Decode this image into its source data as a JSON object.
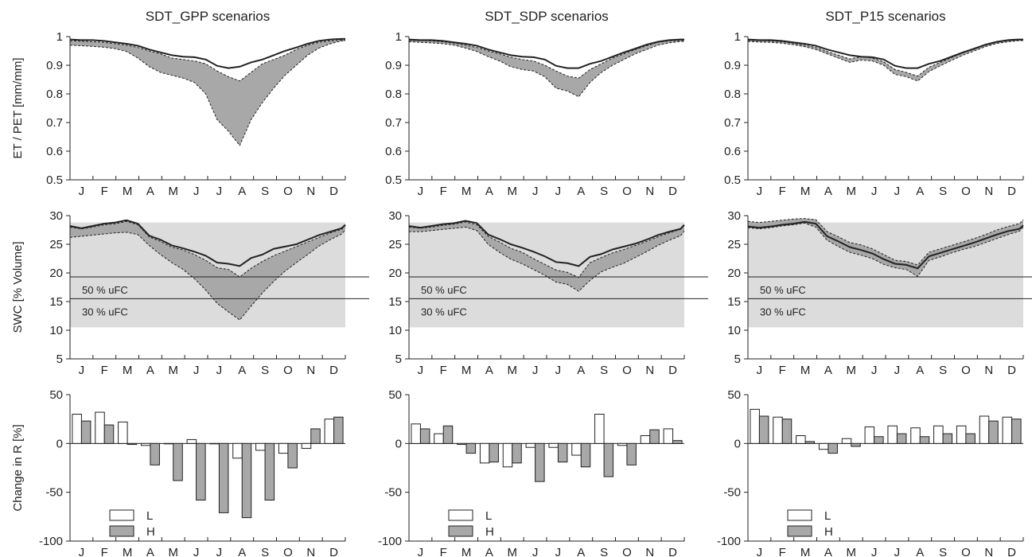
{
  "figure": {
    "months": [
      "J",
      "F",
      "M",
      "A",
      "M",
      "J",
      "J",
      "A",
      "S",
      "O",
      "N",
      "D"
    ],
    "titles": [
      "SDT_GPP scenarios",
      "SDT_SDP scenarios",
      "SDT_P15 scenarios"
    ],
    "ylabels": [
      "ET / PET [mm/mm]",
      "SWC [% Volume]",
      "Change in R [%]"
    ],
    "colors": {
      "band": "#a8a8a8",
      "swc_region": "#dcdcdc",
      "bar_H": "#a8a8a8",
      "bar_L": "#ffffff",
      "line": "#222222"
    }
  },
  "chart_data": [
    {
      "type": "area",
      "id": "et-gpp",
      "title": "SDT_GPP scenarios",
      "ylabel": "ET / PET [mm/mm]",
      "ylim": [
        0.5,
        1
      ],
      "yticks": [
        "0.5",
        "0.6",
        "0.7",
        "0.8",
        "0.9",
        "1"
      ],
      "xlim": [
        0,
        365
      ],
      "x": [
        0,
        15,
        30,
        45,
        60,
        75,
        90,
        105,
        120,
        135,
        150,
        165,
        180,
        195,
        210,
        225,
        240,
        255,
        270,
        285,
        300,
        315,
        330,
        345,
        360,
        365
      ],
      "series": [
        {
          "role": "reference",
          "values": [
            0.99,
            0.988,
            0.988,
            0.985,
            0.98,
            0.975,
            0.968,
            0.955,
            0.945,
            0.935,
            0.93,
            0.928,
            0.92,
            0.898,
            0.89,
            0.895,
            0.91,
            0.92,
            0.935,
            0.95,
            0.962,
            0.975,
            0.985,
            0.99,
            0.992,
            0.992
          ]
        },
        {
          "role": "upper",
          "values": [
            0.985,
            0.984,
            0.982,
            0.98,
            0.975,
            0.97,
            0.962,
            0.95,
            0.94,
            0.925,
            0.92,
            0.915,
            0.905,
            0.88,
            0.86,
            0.845,
            0.875,
            0.905,
            0.92,
            0.935,
            0.955,
            0.97,
            0.98,
            0.985,
            0.988,
            0.988
          ]
        },
        {
          "role": "lower",
          "values": [
            0.97,
            0.968,
            0.966,
            0.963,
            0.958,
            0.948,
            0.925,
            0.895,
            0.875,
            0.865,
            0.855,
            0.84,
            0.8,
            0.71,
            0.67,
            0.62,
            0.71,
            0.77,
            0.82,
            0.865,
            0.9,
            0.935,
            0.96,
            0.975,
            0.985,
            0.985
          ]
        }
      ]
    },
    {
      "type": "area",
      "id": "et-sdp",
      "title": "SDT_SDP scenarios",
      "ylabel": "",
      "ylim": [
        0.5,
        1
      ],
      "yticks": [
        "0.5",
        "0.6",
        "0.7",
        "0.8",
        "0.9",
        "1"
      ],
      "xlim": [
        0,
        365
      ],
      "x": [
        0,
        15,
        30,
        45,
        60,
        75,
        90,
        105,
        120,
        135,
        150,
        165,
        180,
        195,
        210,
        225,
        240,
        255,
        270,
        285,
        300,
        315,
        330,
        345,
        360,
        365
      ],
      "series": [
        {
          "role": "reference",
          "values": [
            0.99,
            0.988,
            0.988,
            0.985,
            0.98,
            0.975,
            0.968,
            0.955,
            0.945,
            0.935,
            0.93,
            0.928,
            0.92,
            0.898,
            0.89,
            0.89,
            0.905,
            0.915,
            0.93,
            0.945,
            0.958,
            0.972,
            0.982,
            0.988,
            0.99,
            0.99
          ]
        },
        {
          "role": "upper",
          "values": [
            0.987,
            0.986,
            0.985,
            0.982,
            0.977,
            0.97,
            0.962,
            0.95,
            0.94,
            0.928,
            0.92,
            0.915,
            0.9,
            0.88,
            0.862,
            0.855,
            0.885,
            0.905,
            0.925,
            0.94,
            0.955,
            0.968,
            0.98,
            0.985,
            0.987,
            0.987
          ]
        },
        {
          "role": "lower",
          "values": [
            0.982,
            0.98,
            0.978,
            0.975,
            0.97,
            0.96,
            0.948,
            0.93,
            0.915,
            0.895,
            0.885,
            0.88,
            0.86,
            0.82,
            0.81,
            0.79,
            0.84,
            0.875,
            0.9,
            0.92,
            0.94,
            0.955,
            0.97,
            0.978,
            0.983,
            0.983
          ]
        }
      ]
    },
    {
      "type": "area",
      "id": "et-p15",
      "title": "SDT_P15 scenarios",
      "ylabel": "",
      "ylim": [
        0.5,
        1
      ],
      "yticks": [
        "0.5",
        "0.6",
        "0.7",
        "0.8",
        "0.9",
        "1"
      ],
      "xlim": [
        0,
        365
      ],
      "x": [
        0,
        15,
        30,
        45,
        60,
        75,
        90,
        105,
        120,
        135,
        150,
        165,
        180,
        195,
        210,
        225,
        240,
        255,
        270,
        285,
        300,
        315,
        330,
        345,
        360,
        365
      ],
      "series": [
        {
          "role": "reference",
          "values": [
            0.99,
            0.988,
            0.988,
            0.985,
            0.98,
            0.975,
            0.968,
            0.955,
            0.945,
            0.935,
            0.93,
            0.928,
            0.92,
            0.898,
            0.89,
            0.89,
            0.905,
            0.915,
            0.93,
            0.945,
            0.958,
            0.972,
            0.982,
            0.988,
            0.99,
            0.99
          ]
        },
        {
          "role": "upper",
          "values": [
            0.987,
            0.986,
            0.985,
            0.982,
            0.977,
            0.97,
            0.962,
            0.948,
            0.935,
            0.922,
            0.93,
            0.925,
            0.912,
            0.885,
            0.875,
            0.862,
            0.893,
            0.91,
            0.927,
            0.943,
            0.957,
            0.97,
            0.98,
            0.986,
            0.988,
            0.988
          ]
        },
        {
          "role": "lower",
          "values": [
            0.983,
            0.981,
            0.98,
            0.977,
            0.972,
            0.965,
            0.955,
            0.94,
            0.925,
            0.91,
            0.918,
            0.915,
            0.9,
            0.868,
            0.86,
            0.845,
            0.878,
            0.898,
            0.917,
            0.935,
            0.95,
            0.965,
            0.976,
            0.982,
            0.986,
            0.986
          ]
        }
      ]
    },
    {
      "type": "area",
      "id": "swc-gpp",
      "ylabel": "SWC [% Volume]",
      "ylim": [
        5,
        30
      ],
      "yticks": [
        "5",
        "10",
        "15",
        "20",
        "25",
        "30"
      ],
      "xlim": [
        0,
        365
      ],
      "region": [
        10.5,
        28.8
      ],
      "hlines": [
        {
          "y": 19.3,
          "label": "50 % uFC"
        },
        {
          "y": 15.5,
          "label": "30 % uFC"
        }
      ],
      "x": [
        0,
        15,
        30,
        45,
        60,
        75,
        90,
        105,
        120,
        135,
        150,
        165,
        180,
        195,
        210,
        225,
        240,
        255,
        270,
        285,
        300,
        315,
        330,
        345,
        360,
        365
      ],
      "series": [
        {
          "role": "reference",
          "values": [
            28.2,
            27.8,
            28.2,
            28.6,
            28.8,
            29.2,
            28.6,
            26.5,
            25.8,
            24.8,
            24.3,
            23.7,
            23.0,
            21.8,
            21.6,
            21.2,
            22.6,
            23.2,
            24.2,
            24.6,
            25.0,
            25.8,
            26.6,
            27.2,
            27.8,
            28.4
          ]
        },
        {
          "role": "upper",
          "values": [
            28.0,
            27.7,
            28.0,
            28.4,
            28.6,
            29.0,
            28.4,
            26.3,
            25.5,
            24.5,
            24.0,
            23.2,
            22.2,
            20.9,
            20.6,
            19.3,
            20.8,
            22.0,
            23.0,
            23.8,
            24.6,
            25.4,
            26.2,
            27.0,
            27.6,
            28.3
          ]
        },
        {
          "role": "lower",
          "values": [
            26.2,
            26.4,
            26.6,
            26.8,
            27.0,
            27.1,
            26.7,
            24.8,
            23.2,
            21.8,
            20.6,
            19.0,
            17.0,
            14.7,
            13.2,
            11.8,
            14.2,
            16.5,
            18.5,
            20.3,
            21.8,
            23.2,
            24.7,
            25.8,
            26.8,
            27.5
          ]
        }
      ]
    },
    {
      "type": "area",
      "id": "swc-sdp",
      "ylabel": "",
      "ylim": [
        5,
        30
      ],
      "yticks": [
        "5",
        "10",
        "15",
        "20",
        "25",
        "30"
      ],
      "xlim": [
        0,
        365
      ],
      "region": [
        10.5,
        28.8
      ],
      "hlines": [
        {
          "y": 19.3,
          "label": "50 % uFC"
        },
        {
          "y": 15.5,
          "label": "30 % uFC"
        }
      ],
      "x": [
        0,
        15,
        30,
        45,
        60,
        75,
        90,
        105,
        120,
        135,
        150,
        165,
        180,
        195,
        210,
        225,
        240,
        255,
        270,
        285,
        300,
        315,
        330,
        345,
        360,
        365
      ],
      "series": [
        {
          "role": "reference",
          "values": [
            28.2,
            27.9,
            28.2,
            28.5,
            28.7,
            29.1,
            28.7,
            26.7,
            25.9,
            25.0,
            24.4,
            23.7,
            22.9,
            21.9,
            21.7,
            21.2,
            22.8,
            23.3,
            24.1,
            24.6,
            25.1,
            25.8,
            26.6,
            27.2,
            27.7,
            28.4
          ]
        },
        {
          "role": "upper",
          "values": [
            28.0,
            27.8,
            28.0,
            28.3,
            28.5,
            28.9,
            28.4,
            26.4,
            25.4,
            24.3,
            23.6,
            22.5,
            21.5,
            20.5,
            20.1,
            19.2,
            21.8,
            22.7,
            23.5,
            24.1,
            24.8,
            25.5,
            26.3,
            27.0,
            27.6,
            28.3
          ]
        },
        {
          "role": "lower",
          "values": [
            27.2,
            27.2,
            27.4,
            27.6,
            27.8,
            28.0,
            27.4,
            25.0,
            23.6,
            22.4,
            21.6,
            20.6,
            19.6,
            18.4,
            18.0,
            16.8,
            18.7,
            20.2,
            21.0,
            21.7,
            22.7,
            23.7,
            24.8,
            25.7,
            26.5,
            27.3
          ]
        }
      ]
    },
    {
      "type": "area",
      "id": "swc-p15",
      "ylabel": "",
      "ylim": [
        5,
        30
      ],
      "yticks": [
        "5",
        "10",
        "15",
        "20",
        "25",
        "30"
      ],
      "xlim": [
        0,
        365
      ],
      "region": [
        10.5,
        28.8
      ],
      "hlines": [
        {
          "y": 19.3,
          "label": "50 % uFC"
        },
        {
          "y": 15.5,
          "label": "30 % uFC"
        }
      ],
      "x": [
        0,
        15,
        30,
        45,
        60,
        75,
        90,
        105,
        120,
        135,
        150,
        165,
        180,
        195,
        210,
        225,
        240,
        255,
        270,
        285,
        300,
        315,
        330,
        345,
        360,
        365
      ],
      "series": [
        {
          "role": "reference",
          "values": [
            28.1,
            27.9,
            28.1,
            28.4,
            28.6,
            28.9,
            28.6,
            26.4,
            25.5,
            24.5,
            24.0,
            23.4,
            22.4,
            21.6,
            21.4,
            20.8,
            22.9,
            23.5,
            24.1,
            24.7,
            25.3,
            26.0,
            26.7,
            27.3,
            27.7,
            28.3
          ]
        },
        {
          "role": "upper",
          "values": [
            29.0,
            28.8,
            29.0,
            29.2,
            29.4,
            29.5,
            29.3,
            27.2,
            26.3,
            25.3,
            24.9,
            24.2,
            23.2,
            22.2,
            22.0,
            21.4,
            23.6,
            24.2,
            24.8,
            25.4,
            26.0,
            26.7,
            27.5,
            28.1,
            28.6,
            29.3
          ]
        },
        {
          "role": "lower",
          "values": [
            27.9,
            27.7,
            27.9,
            28.2,
            28.4,
            28.7,
            28.0,
            25.7,
            24.6,
            23.6,
            23.1,
            22.5,
            21.5,
            20.9,
            20.6,
            19.4,
            22.2,
            22.8,
            23.5,
            24.1,
            24.6,
            25.3,
            26.0,
            26.7,
            27.3,
            28.0
          ]
        }
      ]
    },
    {
      "type": "bar",
      "id": "r-gpp",
      "ylabel": "Change in R [%]",
      "ylim": [
        -100,
        50
      ],
      "yticks": [
        "-100",
        "-50",
        "0",
        "50"
      ],
      "categories": [
        "J",
        "F",
        "M",
        "A",
        "M",
        "J",
        "J",
        "A",
        "S",
        "O",
        "N",
        "D"
      ],
      "legend": [
        "L",
        "H"
      ],
      "series": [
        {
          "name": "L",
          "values": [
            30,
            32,
            22,
            -2,
            0,
            4,
            0,
            -15,
            -7,
            -10,
            -5,
            25
          ]
        },
        {
          "name": "H",
          "values": [
            23,
            19,
            -1,
            -22,
            -38,
            -58,
            -71,
            -76,
            -58,
            -25,
            15,
            27
          ]
        }
      ]
    },
    {
      "type": "bar",
      "id": "r-sdp",
      "ylabel": "",
      "ylim": [
        -100,
        50
      ],
      "yticks": [
        "-100",
        "-50",
        "0",
        "50"
      ],
      "categories": [
        "J",
        "F",
        "M",
        "A",
        "M",
        "J",
        "J",
        "A",
        "S",
        "O",
        "N",
        "D"
      ],
      "legend": [
        "L",
        "H"
      ],
      "series": [
        {
          "name": "L",
          "values": [
            20,
            10,
            -1,
            -20,
            -24,
            -4,
            -4,
            -12,
            30,
            -2,
            8,
            15
          ]
        },
        {
          "name": "H",
          "values": [
            15,
            18,
            -10,
            -19,
            -20,
            -39,
            -19,
            -24,
            -34,
            -22,
            14,
            3
          ]
        }
      ]
    },
    {
      "type": "bar",
      "id": "r-p15",
      "ylabel": "",
      "ylim": [
        -100,
        50
      ],
      "yticks": [
        "-100",
        "-50",
        "0",
        "50"
      ],
      "categories": [
        "J",
        "F",
        "M",
        "A",
        "M",
        "J",
        "J",
        "A",
        "S",
        "O",
        "N",
        "D"
      ],
      "legend": [
        "L",
        "H"
      ],
      "series": [
        {
          "name": "L",
          "values": [
            35,
            27,
            8,
            -6,
            5,
            17,
            18,
            16,
            18,
            18,
            28,
            27
          ]
        },
        {
          "name": "H",
          "values": [
            28,
            25,
            2,
            -10,
            -3,
            7,
            10,
            7,
            10,
            10,
            23,
            25
          ]
        }
      ]
    }
  ]
}
